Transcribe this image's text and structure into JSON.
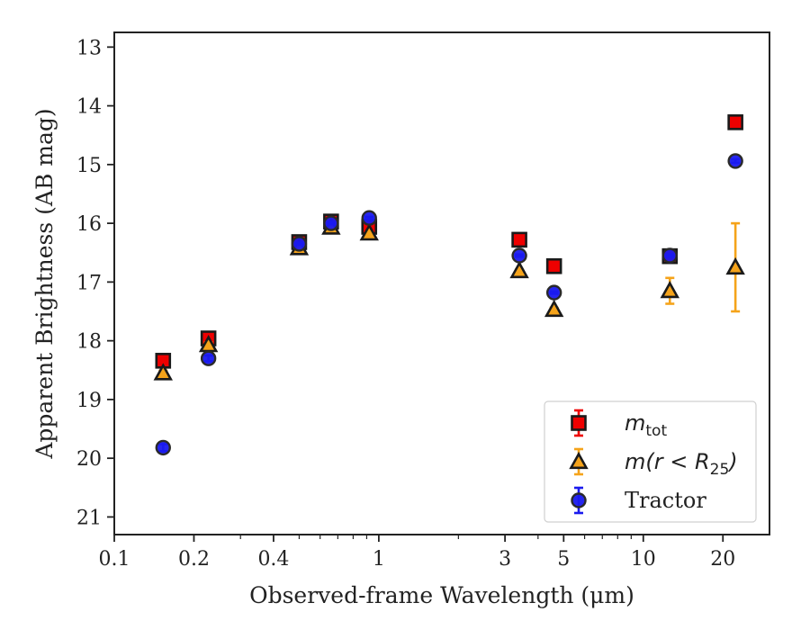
{
  "chart_data": {
    "type": "scatter",
    "xscale": "log",
    "xlim": [
      0.1,
      30
    ],
    "ylim": [
      21.3,
      12.75
    ],
    "y_inverted": true,
    "xlabel": "Observed-frame Wavelength (μm)",
    "ylabel": "Apparent Brightness (AB mag)",
    "xticks": [
      0.1,
      0.2,
      0.4,
      1,
      3,
      5,
      10,
      20
    ],
    "xtick_labels": [
      "0.1",
      "0.2",
      "0.4",
      "1",
      "3",
      "5",
      "10",
      "20"
    ],
    "yticks": [
      13,
      14,
      15,
      16,
      17,
      18,
      19,
      20,
      21
    ],
    "ytick_labels": [
      "13",
      "14",
      "15",
      "16",
      "17",
      "18",
      "19",
      "20",
      "21"
    ],
    "grid": false,
    "legend_position": "lower-right",
    "series": [
      {
        "name": "m_tot",
        "legend_base": "m",
        "legend_sub": "tot",
        "marker": "square",
        "face_color": "#ee0000",
        "edge_color": "#1a1a1a",
        "errbar_color": "#ee0000",
        "points": [
          {
            "x": 0.153,
            "y": 18.34,
            "err": 0.04
          },
          {
            "x": 0.227,
            "y": 17.96,
            "err": 0.03
          },
          {
            "x": 0.5,
            "y": 16.32,
            "err": 0.02
          },
          {
            "x": 0.66,
            "y": 15.97,
            "err": 0.02
          },
          {
            "x": 0.92,
            "y": 16.06,
            "err": 0.03
          },
          {
            "x": 3.4,
            "y": 16.28,
            "err": 0.02
          },
          {
            "x": 4.6,
            "y": 16.73,
            "err": 0.02
          },
          {
            "x": 12.6,
            "y": 16.56,
            "err": 0.03
          },
          {
            "x": 22.3,
            "y": 14.28,
            "err": 0.02
          }
        ]
      },
      {
        "name": "m(r < R25)",
        "legend_base": "m(r < R",
        "legend_sub": "25",
        "legend_tail": ")",
        "marker": "triangle",
        "face_color": "#f5a31a",
        "edge_color": "#1a1a1a",
        "errbar_color": "#f5a31a",
        "points": [
          {
            "x": 0.153,
            "y": 18.55,
            "err": 0.04
          },
          {
            "x": 0.227,
            "y": 18.07,
            "err": 0.04
          },
          {
            "x": 0.5,
            "y": 16.42,
            "err": 0.02
          },
          {
            "x": 0.66,
            "y": 16.07,
            "err": 0.02
          },
          {
            "x": 0.92,
            "y": 16.17,
            "err": 0.02
          },
          {
            "x": 3.4,
            "y": 16.81,
            "err": 0.02
          },
          {
            "x": 4.6,
            "y": 17.47,
            "err": 0.03
          },
          {
            "x": 12.6,
            "y": 17.15,
            "err": 0.22
          },
          {
            "x": 22.3,
            "y": 16.75,
            "err": 0.75
          }
        ]
      },
      {
        "name": "Tractor",
        "legend_base": "Tractor",
        "marker": "circle",
        "face_color": "#1a1aee",
        "edge_color": "#2a2a2a",
        "errbar_color": "#1a1aee",
        "points": [
          {
            "x": 0.153,
            "y": 19.82,
            "err": 0.06
          },
          {
            "x": 0.227,
            "y": 18.3,
            "err": 0.05
          },
          {
            "x": 0.5,
            "y": 16.35,
            "err": 0.02
          },
          {
            "x": 0.66,
            "y": 16.0,
            "err": 0.02
          },
          {
            "x": 0.92,
            "y": 15.91,
            "err": 0.02
          },
          {
            "x": 3.4,
            "y": 16.55,
            "err": 0.02
          },
          {
            "x": 4.6,
            "y": 17.18,
            "err": 0.02
          },
          {
            "x": 12.6,
            "y": 16.55,
            "err": 0.02
          },
          {
            "x": 22.3,
            "y": 14.94,
            "err": 0.03
          }
        ]
      }
    ]
  }
}
